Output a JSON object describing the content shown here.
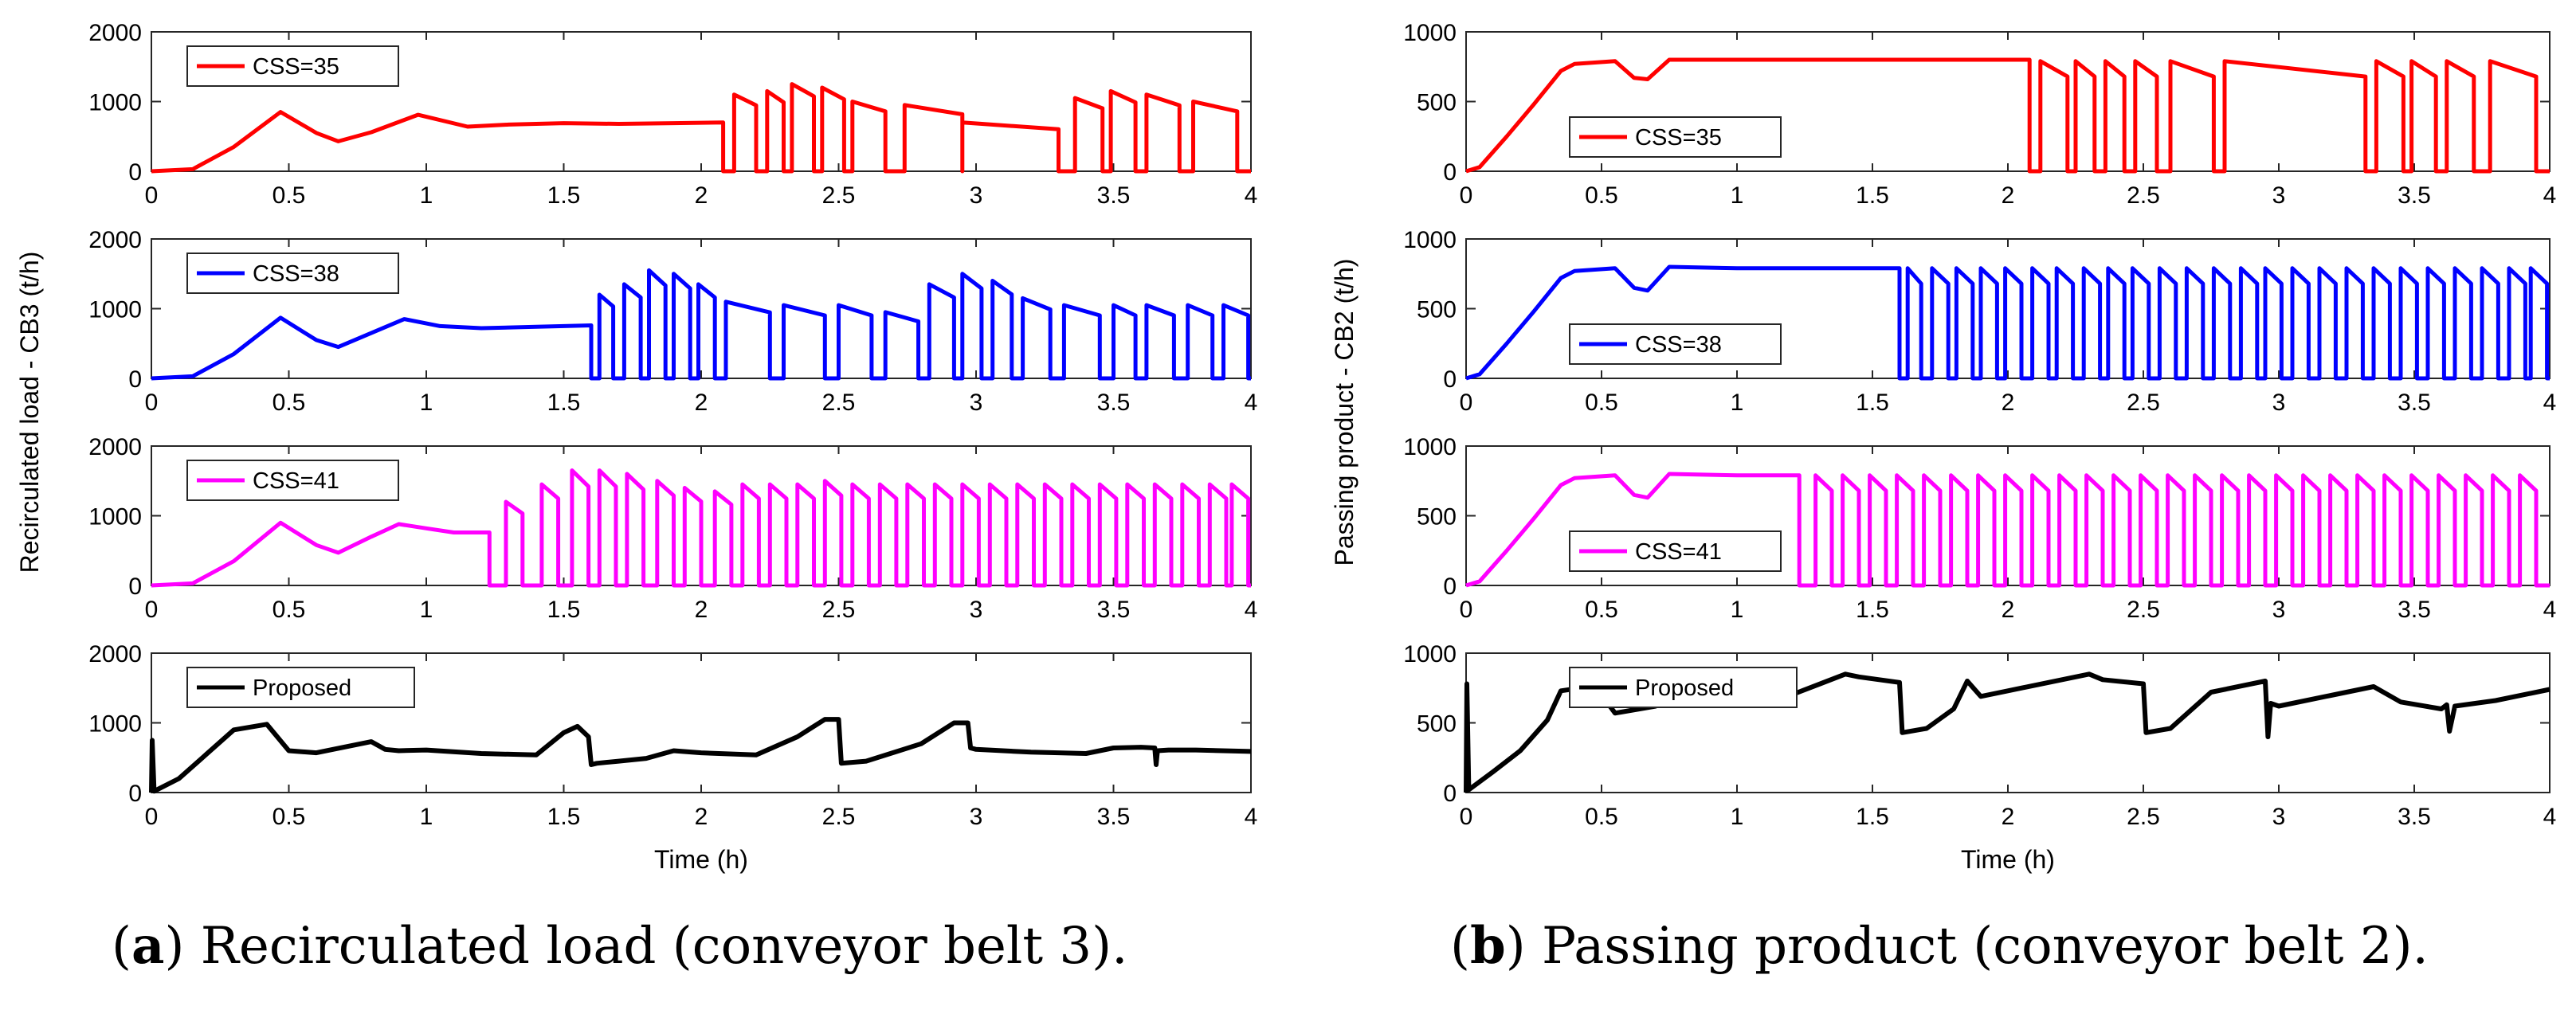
{
  "captions": [
    {
      "letter": "a",
      "text": "Recirculated load (conveyor belt 3)."
    },
    {
      "letter": "b",
      "text": "Passing product (conveyor belt 2)."
    }
  ],
  "chart_data": [
    {
      "type": "line",
      "panel": "a",
      "ylabel": "Recirculated load - CB3 (t/h)",
      "xlabel": "Time (h)",
      "xlim": [
        0,
        4
      ],
      "xticks": [
        "0",
        "0.5",
        "1",
        "1.5",
        "2",
        "2.5",
        "3",
        "3.5",
        "4"
      ],
      "ylim": [
        0,
        2000
      ],
      "yticks": [
        "0",
        "1000",
        "2000"
      ],
      "subplots": [
        {
          "name": "CSS=35",
          "color": "#ff0000",
          "steady_until": 2.08,
          "x": [
            0,
            0.15,
            0.3,
            0.47,
            0.6,
            0.68,
            0.8,
            0.97,
            1.15,
            1.3,
            1.5,
            1.7,
            1.9,
            2.08
          ],
          "y": [
            0,
            30,
            350,
            850,
            550,
            430,
            560,
            810,
            640,
            670,
            690,
            680,
            690,
            700
          ],
          "pulses": [
            [
              2.12,
              2.2,
              1100
            ],
            [
              2.24,
              2.3,
              1150
            ],
            [
              2.33,
              2.41,
              1250
            ],
            [
              2.44,
              2.52,
              1200
            ],
            [
              2.55,
              2.67,
              1000
            ],
            [
              2.74,
              2.95,
              950
            ],
            [
              2.95,
              3.3,
              700
            ],
            [
              3.36,
              3.46,
              1050
            ],
            [
              3.49,
              3.58,
              1150
            ],
            [
              3.62,
              3.74,
              1100
            ],
            [
              3.79,
              3.95,
              1000
            ]
          ]
        },
        {
          "name": "CSS=38",
          "color": "#0000ff",
          "steady_until": 1.6,
          "x": [
            0,
            0.15,
            0.3,
            0.47,
            0.6,
            0.68,
            0.8,
            0.92,
            1.05,
            1.2,
            1.4,
            1.6
          ],
          "y": [
            0,
            30,
            350,
            870,
            550,
            450,
            650,
            850,
            750,
            720,
            740,
            760
          ],
          "pulses": [
            [
              1.63,
              1.68,
              1200
            ],
            [
              1.72,
              1.78,
              1350
            ],
            [
              1.81,
              1.87,
              1550
            ],
            [
              1.9,
              1.96,
              1500
            ],
            [
              1.99,
              2.05,
              1350
            ],
            [
              2.09,
              2.25,
              1100
            ],
            [
              2.3,
              2.45,
              1050
            ],
            [
              2.5,
              2.62,
              1050
            ],
            [
              2.67,
              2.79,
              950
            ],
            [
              2.83,
              2.92,
              1350
            ],
            [
              2.95,
              3.02,
              1500
            ],
            [
              3.06,
              3.13,
              1400
            ],
            [
              3.17,
              3.27,
              1150
            ],
            [
              3.32,
              3.45,
              1050
            ],
            [
              3.5,
              3.58,
              1050
            ],
            [
              3.62,
              3.72,
              1050
            ],
            [
              3.77,
              3.86,
              1050
            ],
            [
              3.9,
              3.99,
              1050
            ]
          ]
        },
        {
          "name": "CSS=41",
          "color": "#ff00ff",
          "steady_until": 1.23,
          "x": [
            0,
            0.15,
            0.3,
            0.47,
            0.6,
            0.68,
            0.8,
            0.9,
            1.0,
            1.1,
            1.23
          ],
          "y": [
            0,
            30,
            350,
            900,
            580,
            470,
            700,
            880,
            820,
            760,
            760
          ],
          "pulses": [
            [
              1.29,
              1.35,
              1200
            ],
            [
              1.42,
              1.48,
              1450
            ],
            [
              1.53,
              1.59,
              1650
            ],
            [
              1.63,
              1.69,
              1650
            ],
            [
              1.73,
              1.79,
              1600
            ],
            [
              1.84,
              1.9,
              1500
            ],
            [
              1.94,
              2.0,
              1400
            ],
            [
              2.05,
              2.11,
              1350
            ],
            [
              2.15,
              2.21,
              1450
            ],
            [
              2.25,
              2.31,
              1450
            ],
            [
              2.35,
              2.41,
              1450
            ],
            [
              2.45,
              2.51,
              1500
            ],
            [
              2.55,
              2.61,
              1450
            ],
            [
              2.65,
              2.71,
              1450
            ],
            [
              2.75,
              2.81,
              1450
            ],
            [
              2.85,
              2.91,
              1450
            ],
            [
              2.95,
              3.01,
              1450
            ],
            [
              3.05,
              3.11,
              1450
            ],
            [
              3.15,
              3.21,
              1450
            ],
            [
              3.25,
              3.31,
              1450
            ],
            [
              3.35,
              3.41,
              1450
            ],
            [
              3.45,
              3.51,
              1450
            ],
            [
              3.55,
              3.61,
              1450
            ],
            [
              3.65,
              3.71,
              1450
            ],
            [
              3.75,
              3.81,
              1450
            ],
            [
              3.85,
              3.91,
              1450
            ],
            [
              3.93,
              3.99,
              1450
            ]
          ]
        },
        {
          "name": "Proposed",
          "color": "#000000",
          "steady_until": 4.0,
          "x": [
            0,
            0.003,
            0.01,
            0.1,
            0.2,
            0.3,
            0.42,
            0.5,
            0.6,
            0.7,
            0.8,
            0.85,
            0.9,
            1.0,
            1.2,
            1.4,
            1.5,
            1.55,
            1.59,
            1.6,
            1.62,
            1.7,
            1.8,
            1.9,
            2.0,
            2.2,
            2.35,
            2.45,
            2.5,
            2.51,
            2.6,
            2.8,
            2.92,
            2.97,
            2.98,
            3.0,
            3.2,
            3.4,
            3.5,
            3.6,
            3.65,
            3.655,
            3.66,
            3.7,
            3.8,
            4.0
          ],
          "y": [
            0,
            750,
            20,
            200,
            550,
            900,
            980,
            600,
            570,
            650,
            730,
            620,
            600,
            610,
            560,
            540,
            860,
            950,
            800,
            400,
            420,
            450,
            490,
            600,
            570,
            540,
            800,
            1050,
            1050,
            420,
            450,
            700,
            1000,
            1000,
            640,
            620,
            580,
            560,
            640,
            650,
            640,
            400,
            600,
            610,
            610,
            590
          ]
        }
      ]
    },
    {
      "type": "line",
      "panel": "b",
      "ylabel": "Passing product - CB2 (t/h)",
      "xlabel": "Time (h)",
      "xlim": [
        0,
        4
      ],
      "xticks": [
        "0",
        "0.5",
        "1",
        "1.5",
        "2",
        "2.5",
        "3",
        "3.5",
        "4"
      ],
      "ylim": [
        0,
        1000
      ],
      "yticks": [
        "0",
        "500",
        "1000"
      ],
      "subplots": [
        {
          "name": "CSS=35",
          "color": "#ff0000",
          "steady_until": 2.08,
          "x": [
            0,
            0.05,
            0.15,
            0.25,
            0.35,
            0.4,
            0.55,
            0.62,
            0.67,
            0.75,
            1.0,
            1.5,
            2.08
          ],
          "y": [
            0,
            30,
            250,
            480,
            720,
            770,
            790,
            670,
            660,
            800,
            800,
            800,
            800
          ],
          "pulses": [
            [
              2.12,
              2.22,
              790
            ],
            [
              2.25,
              2.32,
              790
            ],
            [
              2.36,
              2.43,
              790
            ],
            [
              2.47,
              2.55,
              790
            ],
            [
              2.6,
              2.76,
              790
            ],
            [
              2.8,
              3.32,
              790
            ],
            [
              3.36,
              3.46,
              790
            ],
            [
              3.49,
              3.58,
              790
            ],
            [
              3.62,
              3.72,
              790
            ],
            [
              3.78,
              3.95,
              790
            ]
          ]
        },
        {
          "name": "CSS=38",
          "color": "#0000ff",
          "steady_until": 1.6,
          "x": [
            0,
            0.05,
            0.15,
            0.25,
            0.35,
            0.4,
            0.55,
            0.62,
            0.67,
            0.75,
            1.0,
            1.6
          ],
          "y": [
            0,
            30,
            250,
            480,
            720,
            770,
            790,
            650,
            630,
            800,
            790,
            790
          ],
          "pulses": [
            [
              1.63,
              1.68,
              790
            ],
            [
              1.72,
              1.78,
              790
            ],
            [
              1.81,
              1.87,
              790
            ],
            [
              1.9,
              1.96,
              790
            ],
            [
              1.99,
              2.05,
              790
            ],
            [
              2.09,
              2.15,
              790
            ],
            [
              2.18,
              2.24,
              790
            ],
            [
              2.28,
              2.34,
              790
            ],
            [
              2.37,
              2.43,
              790
            ],
            [
              2.46,
              2.52,
              790
            ],
            [
              2.56,
              2.62,
              790
            ],
            [
              2.66,
              2.72,
              790
            ],
            [
              2.76,
              2.82,
              790
            ],
            [
              2.86,
              2.92,
              790
            ],
            [
              2.95,
              3.01,
              790
            ],
            [
              3.05,
              3.11,
              790
            ],
            [
              3.15,
              3.21,
              790
            ],
            [
              3.25,
              3.31,
              790
            ],
            [
              3.35,
              3.41,
              790
            ],
            [
              3.45,
              3.51,
              790
            ],
            [
              3.55,
              3.61,
              790
            ],
            [
              3.65,
              3.71,
              790
            ],
            [
              3.75,
              3.81,
              790
            ],
            [
              3.85,
              3.91,
              790
            ],
            [
              3.93,
              3.99,
              790
            ]
          ]
        },
        {
          "name": "CSS=41",
          "color": "#ff00ff",
          "steady_until": 1.23,
          "x": [
            0,
            0.05,
            0.15,
            0.25,
            0.35,
            0.4,
            0.55,
            0.62,
            0.67,
            0.75,
            1.0,
            1.23
          ],
          "y": [
            0,
            30,
            250,
            480,
            720,
            770,
            790,
            650,
            630,
            800,
            790,
            790
          ],
          "pulses": [
            [
              1.29,
              1.35,
              790
            ],
            [
              1.39,
              1.45,
              790
            ],
            [
              1.49,
              1.55,
              790
            ],
            [
              1.59,
              1.65,
              790
            ],
            [
              1.69,
              1.75,
              790
            ],
            [
              1.79,
              1.85,
              790
            ],
            [
              1.89,
              1.95,
              790
            ],
            [
              1.99,
              2.05,
              790
            ],
            [
              2.09,
              2.15,
              790
            ],
            [
              2.19,
              2.25,
              790
            ],
            [
              2.29,
              2.35,
              790
            ],
            [
              2.39,
              2.45,
              790
            ],
            [
              2.49,
              2.55,
              790
            ],
            [
              2.59,
              2.65,
              790
            ],
            [
              2.69,
              2.75,
              790
            ],
            [
              2.79,
              2.85,
              790
            ],
            [
              2.89,
              2.95,
              790
            ],
            [
              2.99,
              3.05,
              790
            ],
            [
              3.09,
              3.15,
              790
            ],
            [
              3.19,
              3.25,
              790
            ],
            [
              3.29,
              3.35,
              790
            ],
            [
              3.39,
              3.45,
              790
            ],
            [
              3.49,
              3.55,
              790
            ],
            [
              3.59,
              3.65,
              790
            ],
            [
              3.69,
              3.75,
              790
            ],
            [
              3.79,
              3.85,
              790
            ],
            [
              3.89,
              3.95,
              790
            ]
          ]
        },
        {
          "name": "Proposed",
          "color": "#000000",
          "steady_until": 4.0,
          "x": [
            0,
            0.003,
            0.01,
            0.1,
            0.2,
            0.3,
            0.35,
            0.42,
            0.5,
            0.55,
            0.7,
            0.75,
            0.85,
            0.9,
            1.0,
            1.2,
            1.4,
            1.45,
            1.6,
            1.61,
            1.7,
            1.8,
            1.85,
            1.9,
            2.0,
            2.3,
            2.35,
            2.5,
            2.51,
            2.6,
            2.75,
            2.95,
            2.96,
            2.97,
            3.0,
            3.2,
            3.35,
            3.45,
            3.6,
            3.62,
            3.63,
            3.65,
            3.8,
            4.0
          ],
          "y": [
            0,
            780,
            20,
            150,
            300,
            520,
            730,
            750,
            700,
            570,
            620,
            790,
            800,
            650,
            630,
            700,
            850,
            830,
            790,
            430,
            460,
            600,
            800,
            690,
            730,
            850,
            810,
            780,
            430,
            460,
            720,
            800,
            400,
            640,
            620,
            700,
            760,
            650,
            600,
            630,
            440,
            620,
            660,
            740
          ]
        }
      ]
    }
  ]
}
